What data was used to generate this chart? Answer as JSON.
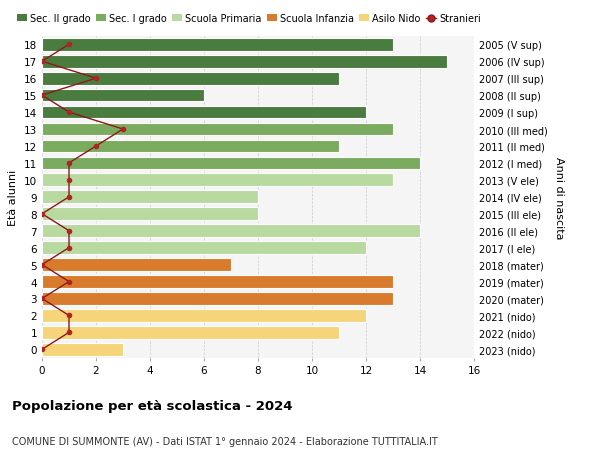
{
  "ages": [
    18,
    17,
    16,
    15,
    14,
    13,
    12,
    11,
    10,
    9,
    8,
    7,
    6,
    5,
    4,
    3,
    2,
    1,
    0
  ],
  "right_labels": [
    "2005 (V sup)",
    "2006 (IV sup)",
    "2007 (III sup)",
    "2008 (II sup)",
    "2009 (I sup)",
    "2010 (III med)",
    "2011 (II med)",
    "2012 (I med)",
    "2013 (V ele)",
    "2014 (IV ele)",
    "2015 (III ele)",
    "2016 (II ele)",
    "2017 (I ele)",
    "2018 (mater)",
    "2019 (mater)",
    "2020 (mater)",
    "2021 (nido)",
    "2022 (nido)",
    "2023 (nido)"
  ],
  "bar_values": [
    13,
    15,
    11,
    6,
    12,
    13,
    11,
    14,
    13,
    8,
    8,
    14,
    12,
    7,
    13,
    13,
    12,
    11,
    3
  ],
  "bar_colors": [
    "#4a7c3f",
    "#4a7c3f",
    "#4a7c3f",
    "#4a7c3f",
    "#4a7c3f",
    "#7aab5e",
    "#7aab5e",
    "#7aab5e",
    "#b8d9a0",
    "#b8d9a0",
    "#b8d9a0",
    "#b8d9a0",
    "#b8d9a0",
    "#d97b2c",
    "#d97b2c",
    "#d97b2c",
    "#f5d47a",
    "#f5d47a",
    "#f5d47a"
  ],
  "stranieri_values": [
    1,
    0,
    2,
    0,
    1,
    3,
    2,
    1,
    1,
    1,
    0,
    1,
    1,
    0,
    1,
    0,
    1,
    1,
    0
  ],
  "legend_labels": [
    "Sec. II grado",
    "Sec. I grado",
    "Scuola Primaria",
    "Scuola Infanzia",
    "Asilo Nido",
    "Stranieri"
  ],
  "legend_colors": [
    "#4a7c3f",
    "#7aab5e",
    "#b8d9a0",
    "#d97b2c",
    "#f5d47a",
    "#b22222"
  ],
  "ylabel_left": "Età alunni",
  "ylabel_right": "Anni di nascita",
  "title": "Popolazione per età scolastica - 2024",
  "subtitle": "COMUNE DI SUMMONTE (AV) - Dati ISTAT 1° gennaio 2024 - Elaborazione TUTTITALIA.IT",
  "xlim": [
    0,
    16
  ],
  "background_color": "#ffffff"
}
